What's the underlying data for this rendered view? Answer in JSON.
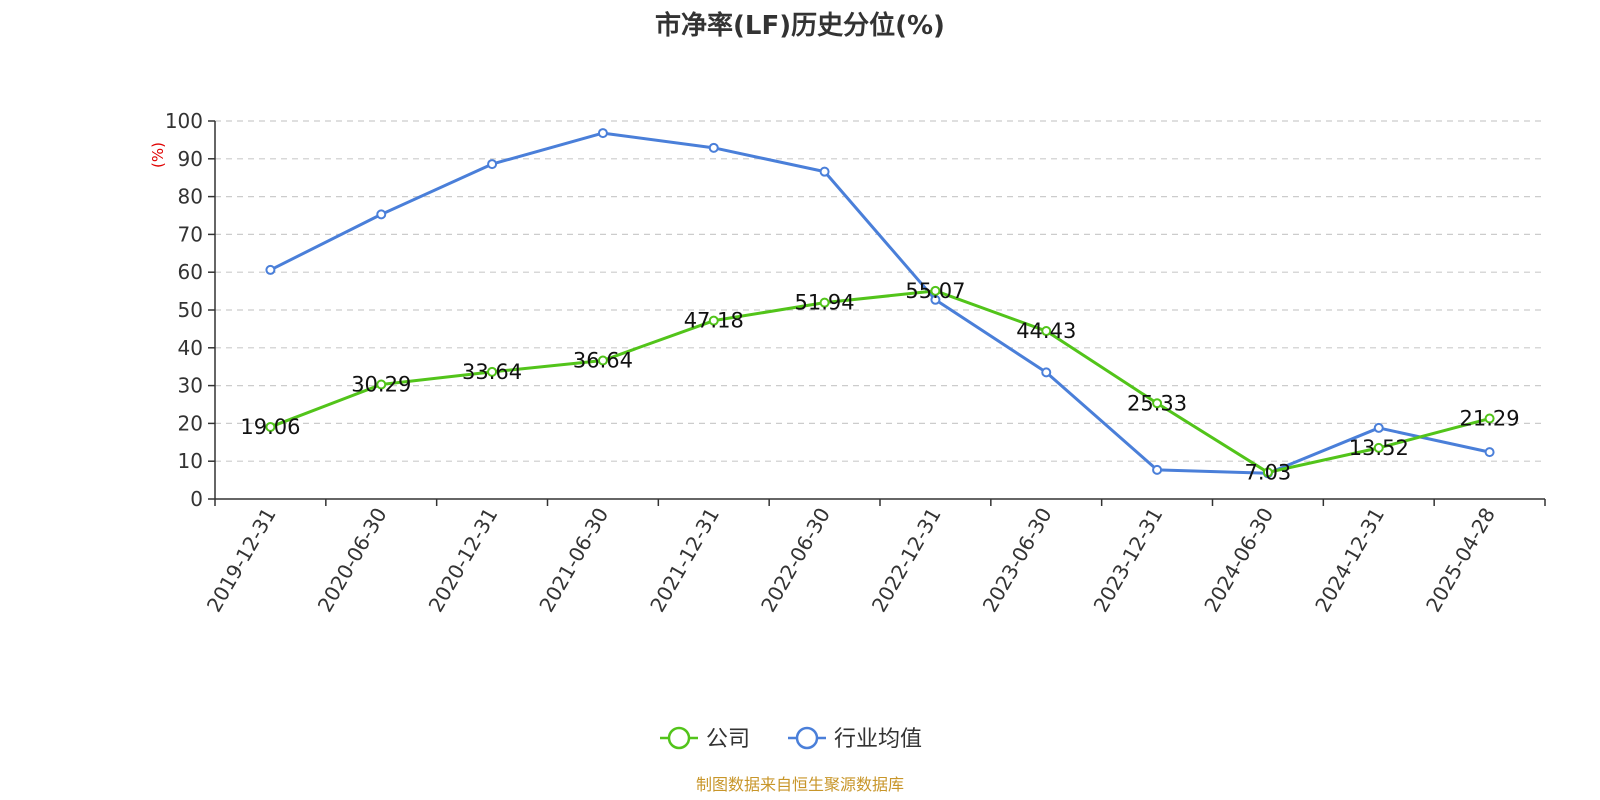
{
  "chart_data": {
    "type": "line",
    "title": "市净率(LF)历史分位(%)",
    "ylabel": "(%)",
    "ylim": [
      0,
      100
    ],
    "yticks": [
      "0",
      "10",
      "20",
      "30",
      "40",
      "50",
      "60",
      "70",
      "80",
      "90",
      "100"
    ],
    "grid": true,
    "legend_position": "bottom",
    "categories": [
      "2019-12-31",
      "2020-06-30",
      "2020-12-31",
      "2021-06-30",
      "2021-12-31",
      "2022-06-30",
      "2022-12-31",
      "2023-06-30",
      "2023-12-31",
      "2024-06-30",
      "2024-12-31",
      "2025-04-28"
    ],
    "series": [
      {
        "name": "公司",
        "color": "#52c41a",
        "values": [
          19.06,
          30.29,
          33.64,
          36.64,
          47.18,
          51.94,
          55.07,
          44.43,
          25.33,
          7.03,
          13.52,
          21.29
        ],
        "labels": [
          "19.06",
          "30.29",
          "33.64",
          "36.64",
          "47.18",
          "51.94",
          "55.07",
          "44.43",
          "25.33",
          "7.03",
          "13.52",
          "21.29"
        ]
      },
      {
        "name": "行业均值",
        "color": "#4a7fd9",
        "values": [
          60.6,
          75.3,
          88.6,
          96.8,
          92.9,
          86.6,
          52.7,
          33.5,
          7.7,
          6.8,
          18.8,
          12.4
        ]
      }
    ],
    "source": "制图数据来自恒生聚源数据库",
    "source_color": "#c8962a",
    "ylabel_color": "#e00000"
  }
}
